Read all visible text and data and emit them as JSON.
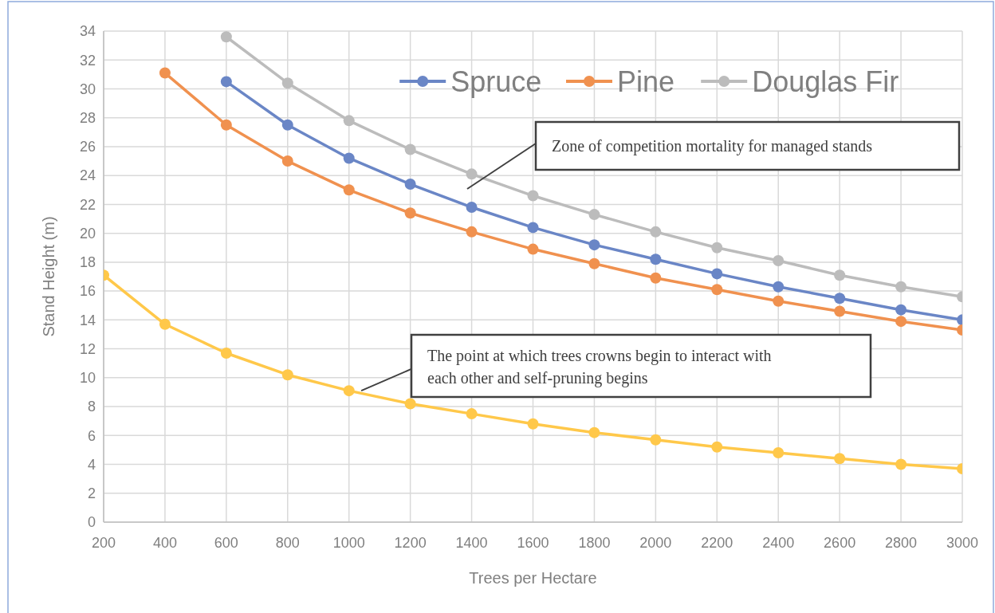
{
  "chart_data": {
    "type": "line",
    "xlabel": "Trees per Hectare",
    "ylabel": "Stand Height (m)",
    "x": [
      200,
      400,
      600,
      800,
      1000,
      1200,
      1400,
      1600,
      1800,
      2000,
      2200,
      2400,
      2600,
      2800,
      3000
    ],
    "series": [
      {
        "name": "Spruce",
        "color": "#6a86c6",
        "values": [
          null,
          null,
          30.5,
          27.5,
          25.2,
          23.4,
          21.8,
          20.4,
          19.2,
          18.2,
          17.2,
          16.3,
          15.5,
          14.7,
          14.0
        ]
      },
      {
        "name": "Pine",
        "color": "#f0914f",
        "values": [
          null,
          31.1,
          27.5,
          25.0,
          23.0,
          21.4,
          20.1,
          18.9,
          17.9,
          16.9,
          16.1,
          15.3,
          14.6,
          13.9,
          13.3
        ]
      },
      {
        "name": "Douglas Fir",
        "color": "#bcbcbc",
        "values": [
          null,
          null,
          33.6,
          30.4,
          27.8,
          25.8,
          24.1,
          22.6,
          21.3,
          20.1,
          19.0,
          18.1,
          17.1,
          16.3,
          15.6
        ]
      },
      {
        "color": "#ffc84a",
        "values": [
          17.1,
          13.7,
          11.7,
          10.2,
          9.1,
          8.2,
          7.5,
          6.8,
          6.2,
          5.7,
          5.2,
          4.8,
          4.4,
          4.0,
          3.7
        ]
      }
    ],
    "xlim": [
      200,
      3000
    ],
    "xticks": [
      200,
      400,
      600,
      800,
      1000,
      1200,
      1400,
      1600,
      1800,
      2000,
      2200,
      2400,
      2600,
      2800,
      3000
    ],
    "ylim": [
      0,
      34
    ],
    "yticks": [
      0,
      2,
      4,
      6,
      8,
      10,
      12,
      14,
      16,
      18,
      20,
      22,
      24,
      26,
      28,
      30,
      32,
      34
    ],
    "grid": true,
    "legend": "top right",
    "marker": "circle",
    "line_style": "solid",
    "annotations": [
      "Zone of competition mortality for managed stands",
      {
        "text": "The point at which trees crowns begin to interact with each other and self-pruning begins",
        "x": 1040,
        "y": 9.1
      }
    ]
  }
}
